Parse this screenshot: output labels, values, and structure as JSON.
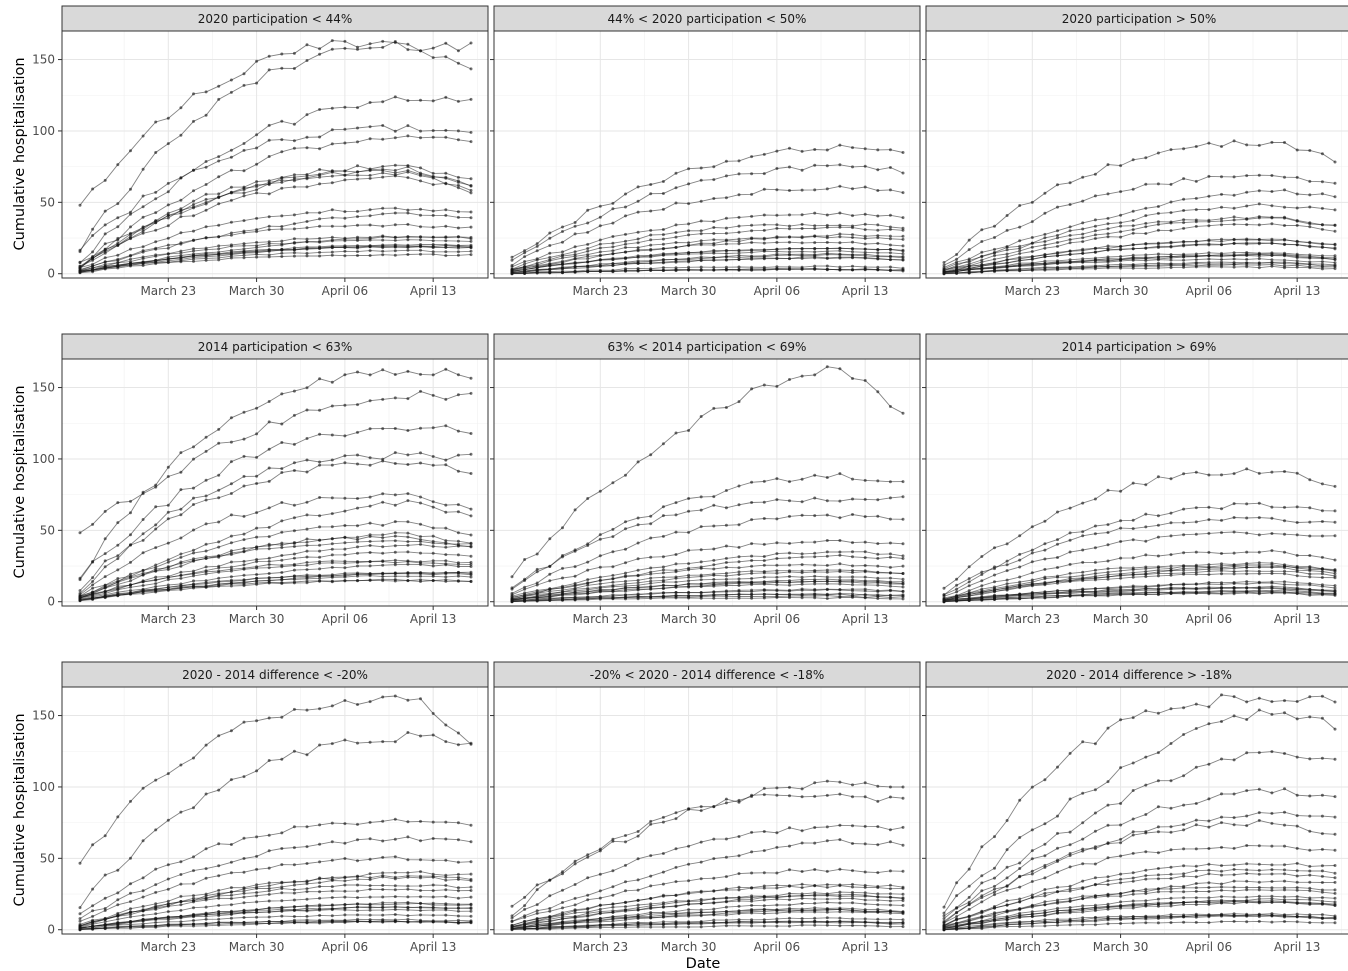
{
  "figure": {
    "ylabel": "Cumulative hospitalisation",
    "xlabel": "Date"
  },
  "chart_data": [
    {
      "type": "line",
      "panel": "2020 participation  < 44%",
      "x_tick_labels": [
        "March 23",
        "March 30",
        "April 06",
        "April 13"
      ],
      "y_tick_labels": [
        "0",
        "50",
        "100",
        "150"
      ],
      "ylim": [
        -3,
        170
      ],
      "x_dates_range": [
        "2020-03-17",
        "2020-04-17"
      ],
      "grid": true,
      "series_style": "grey lines with point markers, no legend",
      "representative_series": [
        {
          "start": 48,
          "end": 141,
          "peak": 163
        },
        {
          "start": 16,
          "end": 160,
          "peak": 160
        },
        {
          "start": 17,
          "end": 120,
          "peak": 122
        },
        {
          "start": 8,
          "end": 101,
          "peak": 102
        },
        {
          "start": 6,
          "end": 91,
          "peak": 97
        },
        {
          "start": 5,
          "end": 65,
          "peak": 75
        },
        {
          "start": 4,
          "end": 60,
          "peak": 70
        },
        {
          "start": 3,
          "end": 40,
          "peak": 42
        },
        {
          "start": 2,
          "end": 25,
          "peak": 26
        },
        {
          "start": 1,
          "end": 20,
          "peak": 20
        }
      ]
    },
    {
      "type": "line",
      "panel": "44% < 2020 participation  < 50%",
      "x_tick_labels": [
        "March 23",
        "March 30",
        "April 06",
        "April 13"
      ],
      "ylim": [
        -3,
        170
      ],
      "grid": true,
      "representative_series": [
        {
          "start": 10,
          "end": 84,
          "peak": 88
        },
        {
          "start": 8,
          "end": 72,
          "peak": 75
        },
        {
          "start": 6,
          "end": 58,
          "peak": 60
        },
        {
          "start": 5,
          "end": 40,
          "peak": 42
        },
        {
          "start": 3,
          "end": 30,
          "peak": 32
        },
        {
          "start": 2,
          "end": 20,
          "peak": 22
        },
        {
          "start": 1,
          "end": 12,
          "peak": 14
        },
        {
          "start": 0,
          "end": 4,
          "peak": 5
        }
      ]
    },
    {
      "type": "line",
      "panel": "2020 participation  > 50%",
      "x_tick_labels": [
        "March 23",
        "March 30",
        "April 06",
        "April 13"
      ],
      "ylim": [
        -3,
        170
      ],
      "grid": true,
      "representative_series": [
        {
          "start": 8,
          "end": 80,
          "peak": 92
        },
        {
          "start": 5,
          "end": 62,
          "peak": 68
        },
        {
          "start": 4,
          "end": 55,
          "peak": 58
        },
        {
          "start": 3,
          "end": 45,
          "peak": 48
        },
        {
          "start": 2,
          "end": 30,
          "peak": 35
        },
        {
          "start": 1,
          "end": 20,
          "peak": 24
        },
        {
          "start": 1,
          "end": 10,
          "peak": 13
        },
        {
          "start": 0,
          "end": 6,
          "peak": 8
        }
      ]
    },
    {
      "type": "line",
      "panel": "2014 participation < 63%",
      "x_tick_labels": [
        "March 23",
        "March 30",
        "April 06",
        "April 13"
      ],
      "y_tick_labels": [
        "0",
        "50",
        "100",
        "150"
      ],
      "ylim": [
        -3,
        170
      ],
      "grid": true,
      "representative_series": [
        {
          "start": 48,
          "end": 143,
          "peak": 146
        },
        {
          "start": 16,
          "end": 160,
          "peak": 160
        },
        {
          "start": 17,
          "end": 120,
          "peak": 122
        },
        {
          "start": 8,
          "end": 101,
          "peak": 102
        },
        {
          "start": 6,
          "end": 91,
          "peak": 97
        },
        {
          "start": 5,
          "end": 65,
          "peak": 75
        },
        {
          "start": 4,
          "end": 60,
          "peak": 70
        },
        {
          "start": 3,
          "end": 38,
          "peak": 40
        },
        {
          "start": 2,
          "end": 25,
          "peak": 26
        },
        {
          "start": 1,
          "end": 20,
          "peak": 20
        }
      ]
    },
    {
      "type": "line",
      "panel": "63% < 2014 participation  < 69%",
      "x_tick_labels": [
        "March 23",
        "March 30",
        "April 06",
        "April 13"
      ],
      "ylim": [
        -3,
        170
      ],
      "grid": true,
      "representative_series": [
        {
          "start": 18,
          "end": 134,
          "peak": 163
        },
        {
          "start": 10,
          "end": 84,
          "peak": 88
        },
        {
          "start": 8,
          "end": 72,
          "peak": 72
        },
        {
          "start": 6,
          "end": 58,
          "peak": 60
        },
        {
          "start": 5,
          "end": 40,
          "peak": 42
        },
        {
          "start": 3,
          "end": 30,
          "peak": 32
        },
        {
          "start": 2,
          "end": 20,
          "peak": 22
        },
        {
          "start": 1,
          "end": 12,
          "peak": 14
        },
        {
          "start": 0,
          "end": 4,
          "peak": 5
        }
      ]
    },
    {
      "type": "line",
      "panel": "2014 participation > 69%",
      "x_tick_labels": [
        "March 23",
        "March 30",
        "April 06",
        "April 13"
      ],
      "ylim": [
        -3,
        170
      ],
      "grid": true,
      "representative_series": [
        {
          "start": 8,
          "end": 80,
          "peak": 92
        },
        {
          "start": 5,
          "end": 62,
          "peak": 68
        },
        {
          "start": 4,
          "end": 55,
          "peak": 58
        },
        {
          "start": 3,
          "end": 45,
          "peak": 48
        },
        {
          "start": 2,
          "end": 30,
          "peak": 35
        },
        {
          "start": 1,
          "end": 20,
          "peak": 24
        },
        {
          "start": 1,
          "end": 10,
          "peak": 13
        },
        {
          "start": 0,
          "end": 6,
          "peak": 8
        }
      ]
    },
    {
      "type": "line",
      "panel": "2020 - 2014 difference < -20%",
      "x_tick_labels": [
        "March 23",
        "March 30",
        "April 06",
        "April 13"
      ],
      "y_tick_labels": [
        "0",
        "50",
        "100",
        "150"
      ],
      "ylim": [
        -3,
        170
      ],
      "grid": true,
      "representative_series": [
        {
          "start": 48,
          "end": 134,
          "peak": 163
        },
        {
          "start": 16,
          "end": 130,
          "peak": 135
        },
        {
          "start": 10,
          "end": 75,
          "peak": 76
        },
        {
          "start": 8,
          "end": 62,
          "peak": 64
        },
        {
          "start": 5,
          "end": 47,
          "peak": 50
        },
        {
          "start": 3,
          "end": 38,
          "peak": 40
        },
        {
          "start": 2,
          "end": 27,
          "peak": 28
        },
        {
          "start": 1,
          "end": 15,
          "peak": 16
        },
        {
          "start": 0,
          "end": 6,
          "peak": 7
        }
      ]
    },
    {
      "type": "line",
      "panel": "-20% < 2020 - 2014 difference  < -18%",
      "x_tick_labels": [
        "March 23",
        "March 30",
        "April 06",
        "April 13"
      ],
      "ylim": [
        -3,
        170
      ],
      "grid": true,
      "representative_series": [
        {
          "start": 17,
          "end": 102,
          "peak": 103
        },
        {
          "start": 10,
          "end": 90,
          "peak": 95
        },
        {
          "start": 8,
          "end": 70,
          "peak": 72
        },
        {
          "start": 6,
          "end": 60,
          "peak": 62
        },
        {
          "start": 5,
          "end": 40,
          "peak": 42
        },
        {
          "start": 3,
          "end": 30,
          "peak": 32
        },
        {
          "start": 2,
          "end": 20,
          "peak": 22
        },
        {
          "start": 1,
          "end": 12,
          "peak": 14
        },
        {
          "start": 0,
          "end": 4,
          "peak": 5
        }
      ]
    },
    {
      "type": "line",
      "panel": "2020 - 2014 difference > -18%",
      "x_tick_labels": [
        "March 23",
        "March 30",
        "April 06",
        "April 13"
      ],
      "ylim": [
        -3,
        170
      ],
      "grid": true,
      "representative_series": [
        {
          "start": 16,
          "end": 160,
          "peak": 162
        },
        {
          "start": 12,
          "end": 143,
          "peak": 152
        },
        {
          "start": 10,
          "end": 120,
          "peak": 125
        },
        {
          "start": 8,
          "end": 93,
          "peak": 97
        },
        {
          "start": 6,
          "end": 80,
          "peak": 81
        },
        {
          "start": 5,
          "end": 65,
          "peak": 75
        },
        {
          "start": 4,
          "end": 55,
          "peak": 58
        },
        {
          "start": 3,
          "end": 40,
          "peak": 42
        },
        {
          "start": 2,
          "end": 28,
          "peak": 30
        },
        {
          "start": 1,
          "end": 18,
          "peak": 20
        },
        {
          "start": 0,
          "end": 8,
          "peak": 10
        }
      ]
    }
  ]
}
